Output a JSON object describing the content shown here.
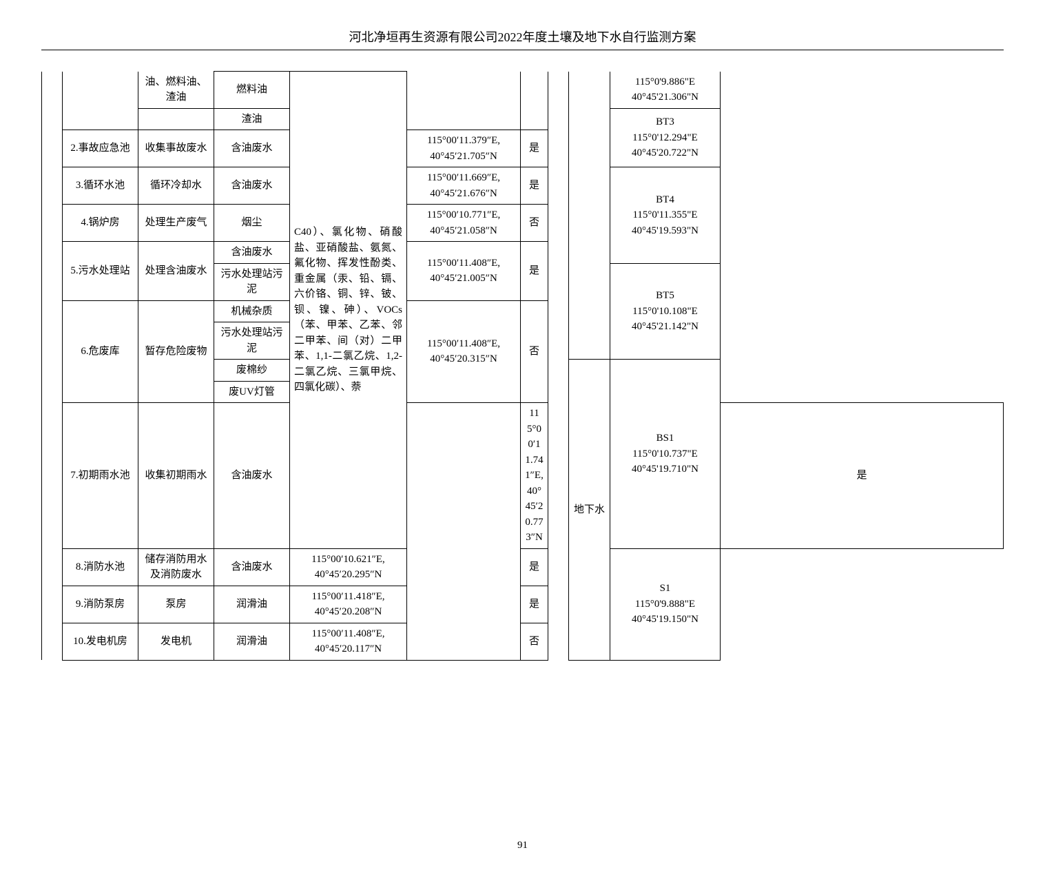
{
  "header": "河北净垣再生资源有限公司2022年度土壤及地下水自行监测方案",
  "page_number": "91",
  "col_b_top1": "油、燃料油、渣油",
  "col_c_top1": "燃料油",
  "col_c_top2": "渣油",
  "col_d_merged": "C40）、氯化物、硝酸盐、亚硝酸盐、氨氮、氟化物、挥发性酚类、重金属（汞、铅、镉、六价铬、铜、锌、铍、钡、镍、砷）、VOCs（苯、甲苯、乙苯、邻二甲苯、间（对）二甲苯、1,1-二氯乙烷、1,2-二氯乙烷、三氯甲烷、四氯化碳）、萘",
  "col_i_top1": "115°0'9.886\"E\n40°45'21.306\"N",
  "col_i_top2": "BT3\n115°0'12.294\"E\n40°45'20.722\"N",
  "row2_a": "2.事故应急池",
  "row2_b": "收集事故废水",
  "row2_c": "含油废水",
  "row2_e": "115°00′11.379″E,\n40°45′21.705″N",
  "row2_f": "是",
  "row3_a": "3.循环水池",
  "row3_b": "循环冷却水",
  "row3_c": "含油废水",
  "row3_e": "115°00′11.669″E,\n40°45′21.676″N",
  "row3_f": "是",
  "row3_i": "BT4\n115°0'11.355\"E\n40°45'19.593\"N",
  "row4_a": "4.锅炉房",
  "row4_b": "处理生产废气",
  "row4_c": "烟尘",
  "row4_e": "115°00′10.771″E,\n40°45′21.058″N",
  "row4_f": "否",
  "row5_a": "5.污水处理站",
  "row5_b": "处理含油废水",
  "row5_c1": "含油废水",
  "row5_c2": "污水处理站污泥",
  "row5_e": "115°00′11.408″E,\n40°45′21.005″N",
  "row5_f": "是",
  "row6_a": "6.危废库",
  "row6_b": "暂存危险废物",
  "row6_c1": "机械杂质",
  "row6_c2": "污水处理站污泥",
  "row6_c3": "废棉纱",
  "row6_c4": "废UV灯管",
  "row6_e": "115°00′11.408″E,\n40°45′20.315″N",
  "row6_f": "否",
  "row6_i": "BT5\n115°0'10.108\"E\n40°45'21.142\"N",
  "row7_a": "7.初期雨水池",
  "row7_b": "收集初期雨水",
  "row7_c": "含油废水",
  "row7_e": "115°00′11.741″E,\n40°45′20.773″N",
  "row7_f": "是",
  "row7_i": "BS1\n115°0'10.737\"E\n40°45'19.710\"N",
  "row8_a": "8.消防水池",
  "row8_b": "储存消防用水及消防废水",
  "row8_c": "含油废水",
  "row8_e": "115°00′10.621″E,\n40°45′20.295″N",
  "row8_f": "是",
  "row8_h": "地下水",
  "row9_a": "9.消防泵房",
  "row9_b": "泵房",
  "row9_c": "润滑油",
  "row9_e": "115°00′11.418″E,\n40°45′20.208″N",
  "row9_f": "是",
  "row9_i": "S1\n115°0'9.888\"E\n40°45'19.150\"N",
  "row10_a": "10.发电机房",
  "row10_b": "发电机",
  "row10_c": "润滑油",
  "row10_e": "115°00′11.408″E,\n40°45′20.117″N",
  "row10_f": "否"
}
